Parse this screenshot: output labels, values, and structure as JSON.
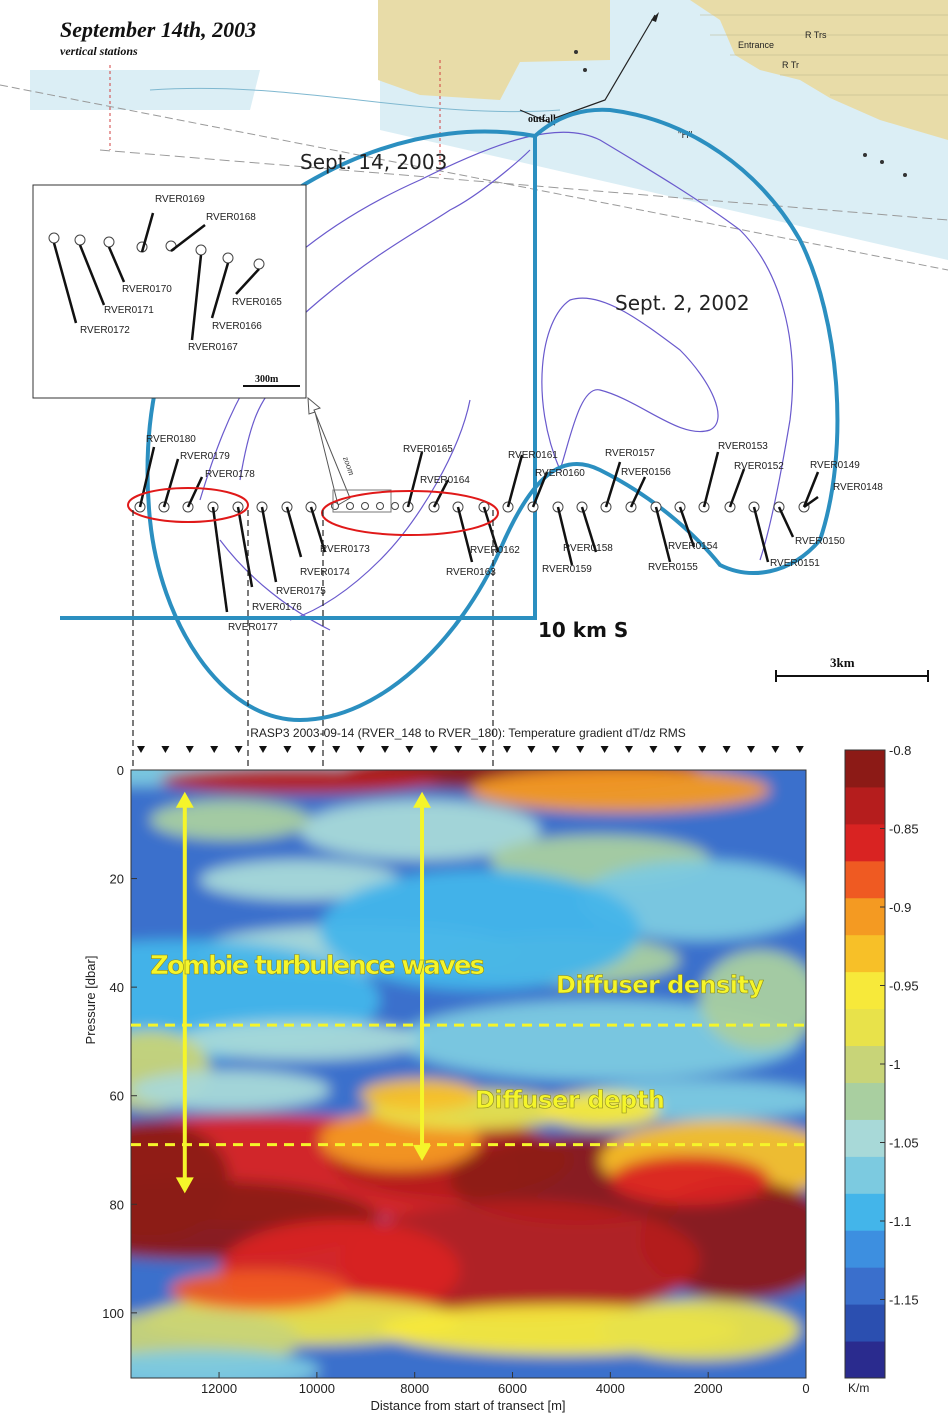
{
  "map": {
    "title": "September 14th, 2003",
    "subtitle": "vertical stations",
    "map_labels": {
      "entrance": "Entrance",
      "r_trs": "R Trs",
      "r_tr": "R Tr",
      "h": "\"H\"",
      "outfall": "outfall"
    },
    "survey_labels": {
      "sept14": "Sept. 14, 2003",
      "sept2": "Sept. 2, 2002",
      "km_s": "10 km S"
    },
    "scale_bar_3km": "3km",
    "inset_scale_label": "300m",
    "zoom_label": "zoom",
    "colors": {
      "patch_outline": "#2b8fc0",
      "contour": "#6a5acd",
      "highlight": "#e01919",
      "land": "#e8dca8",
      "water": "#dbeef5"
    },
    "inset_stations": [
      "RVER0165",
      "RVER0166",
      "RVER0167",
      "RVER0168",
      "RVER0169",
      "RVER0170",
      "RVER0171",
      "RVER0172"
    ],
    "transect_stations": [
      "RVER0148",
      "RVER0149",
      "RVER0150",
      "RVER0151",
      "RVER0152",
      "RVER0153",
      "RVER0154",
      "RVER0155",
      "RVER0156",
      "RVER0157",
      "RVER0158",
      "RVER0159",
      "RVER0160",
      "RVER0161",
      "RVER0162",
      "RVER0163",
      "RVER0164",
      "RVER0165",
      "RVER0173",
      "RVER0174",
      "RVER0175",
      "RVER0176",
      "RVER0177",
      "RVER0178",
      "RVER0179",
      "RVER0180"
    ]
  },
  "chart_data": {
    "type": "heatmap",
    "title": "RASP3 2003-09-14 (RVER_148 to RVER_180): Temperature gradient dT/dz RMS",
    "xlabel": "Distance from start of transect [m]",
    "ylabel": "Pressure [dbar]",
    "x_ticks": [
      12000,
      10000,
      8000,
      6000,
      4000,
      2000,
      0
    ],
    "y_ticks": [
      0,
      20,
      40,
      60,
      80,
      100
    ],
    "xlim": [
      13800,
      0
    ],
    "ylim": [
      0,
      112
    ],
    "colorbar": {
      "ticks": [
        -0.8,
        -0.85,
        -0.9,
        -0.95,
        -1,
        -1.05,
        -1.1,
        -1.15
      ],
      "range": [
        -1.2,
        -0.8
      ],
      "unit": "K/m",
      "colors": [
        "#2a2b8e",
        "#2b4fb0",
        "#3a6fcc",
        "#3d8fe0",
        "#43b5ea",
        "#7ccae0",
        "#a8d9d8",
        "#a9cfa0",
        "#c8d478",
        "#e8e24a",
        "#f7e93a",
        "#f7c028",
        "#f49a22",
        "#ef5a22",
        "#d92322",
        "#b51d1d",
        "#8c1a16"
      ]
    },
    "annotations": [
      "Zombie turbulence waves",
      "Diffuser density",
      "Diffuser depth"
    ],
    "diffuser_density_dbar": 47,
    "diffuser_depth_dbar": 69,
    "arrows": [
      {
        "x": 12700,
        "y_start": 4,
        "y_end": 78
      },
      {
        "x": 7850,
        "y_start": 4,
        "y_end": 72
      }
    ]
  }
}
